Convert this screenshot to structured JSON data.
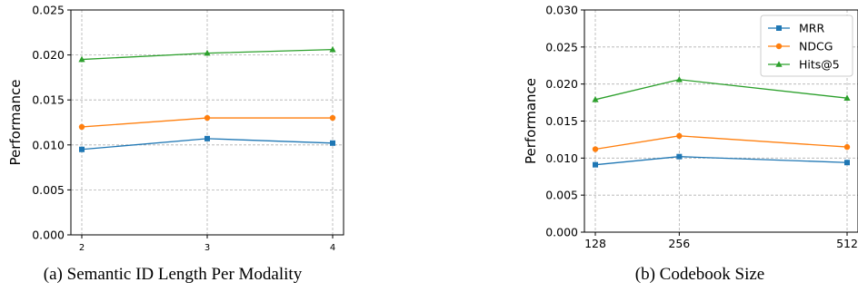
{
  "chart_data": [
    {
      "type": "line",
      "caption": "(a) Semantic ID Length Per Modality",
      "ylabel": "Performance",
      "xlabel": "",
      "x": [
        2,
        3,
        4
      ],
      "x_tick_labels": [
        "2",
        "3",
        "4"
      ],
      "ylim": [
        0,
        0.025
      ],
      "y_ticks": [
        "0.000",
        "0.005",
        "0.010",
        "0.015",
        "0.020",
        "0.025"
      ],
      "grid": true,
      "legend": "none",
      "series": [
        {
          "name": "MRR",
          "color": "#1f77b4",
          "marker": "square",
          "values": [
            0.0095,
            0.0107,
            0.0102
          ]
        },
        {
          "name": "NDCG",
          "color": "#ff7f0e",
          "marker": "circle",
          "values": [
            0.012,
            0.013,
            0.013
          ]
        },
        {
          "name": "Hits@5",
          "color": "#2ca02c",
          "marker": "triangle",
          "values": [
            0.0195,
            0.0202,
            0.0206
          ]
        }
      ]
    },
    {
      "type": "line",
      "caption": "(b) Codebook Size",
      "ylabel": "Performance",
      "xlabel": "",
      "x": [
        128,
        256,
        512
      ],
      "x_tick_labels": [
        "128",
        "256",
        "512"
      ],
      "ylim": [
        0,
        0.03
      ],
      "y_ticks": [
        "0.000",
        "0.005",
        "0.010",
        "0.015",
        "0.020",
        "0.025",
        "0.030"
      ],
      "grid": true,
      "legend": "top-right",
      "series": [
        {
          "name": "MRR",
          "color": "#1f77b4",
          "marker": "square",
          "values": [
            0.0091,
            0.0102,
            0.0094
          ]
        },
        {
          "name": "NDCG",
          "color": "#ff7f0e",
          "marker": "circle",
          "values": [
            0.0112,
            0.013,
            0.0115
          ]
        },
        {
          "name": "Hits@5",
          "color": "#2ca02c",
          "marker": "triangle",
          "values": [
            0.0179,
            0.0206,
            0.0181
          ]
        }
      ]
    }
  ]
}
